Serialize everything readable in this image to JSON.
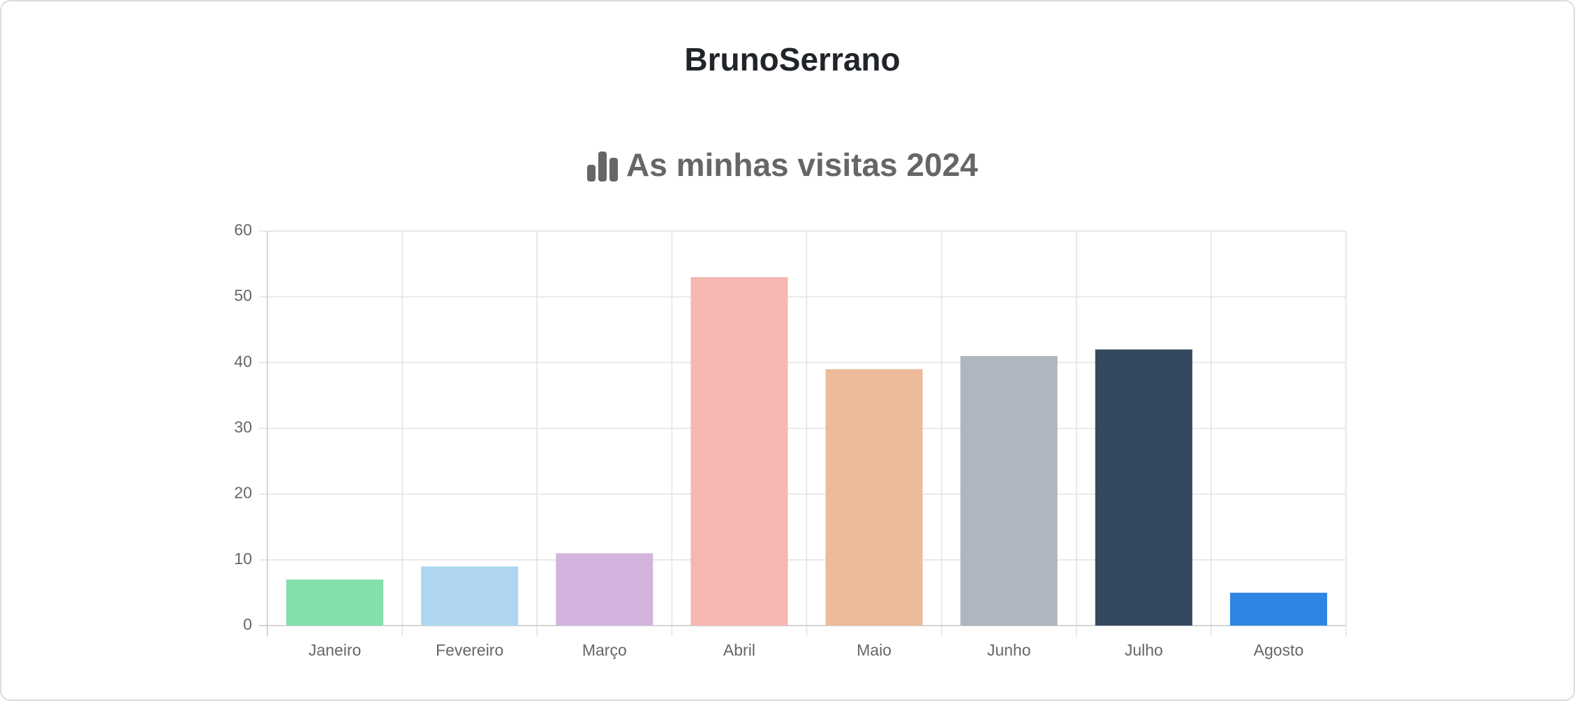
{
  "header": {
    "title": "BrunoSerrano"
  },
  "chart_data": {
    "type": "bar",
    "title": "As minhas visitas 2024",
    "categories": [
      "Janeiro",
      "Fevereiro",
      "Março",
      "Abril",
      "Maio",
      "Junho",
      "Julho",
      "Agosto"
    ],
    "values": [
      7,
      9,
      11,
      53,
      39,
      41,
      42,
      5
    ],
    "colors": [
      "#82e0aa",
      "#aed6f1",
      "#d2b4de",
      "#f5b7b1",
      "#edbb99",
      "#aeb6bf",
      "#34495e",
      "#2e86e4"
    ],
    "ylim": [
      0,
      60
    ],
    "yticks": [
      0,
      10,
      20,
      30,
      40,
      50,
      60
    ],
    "grid": true
  }
}
